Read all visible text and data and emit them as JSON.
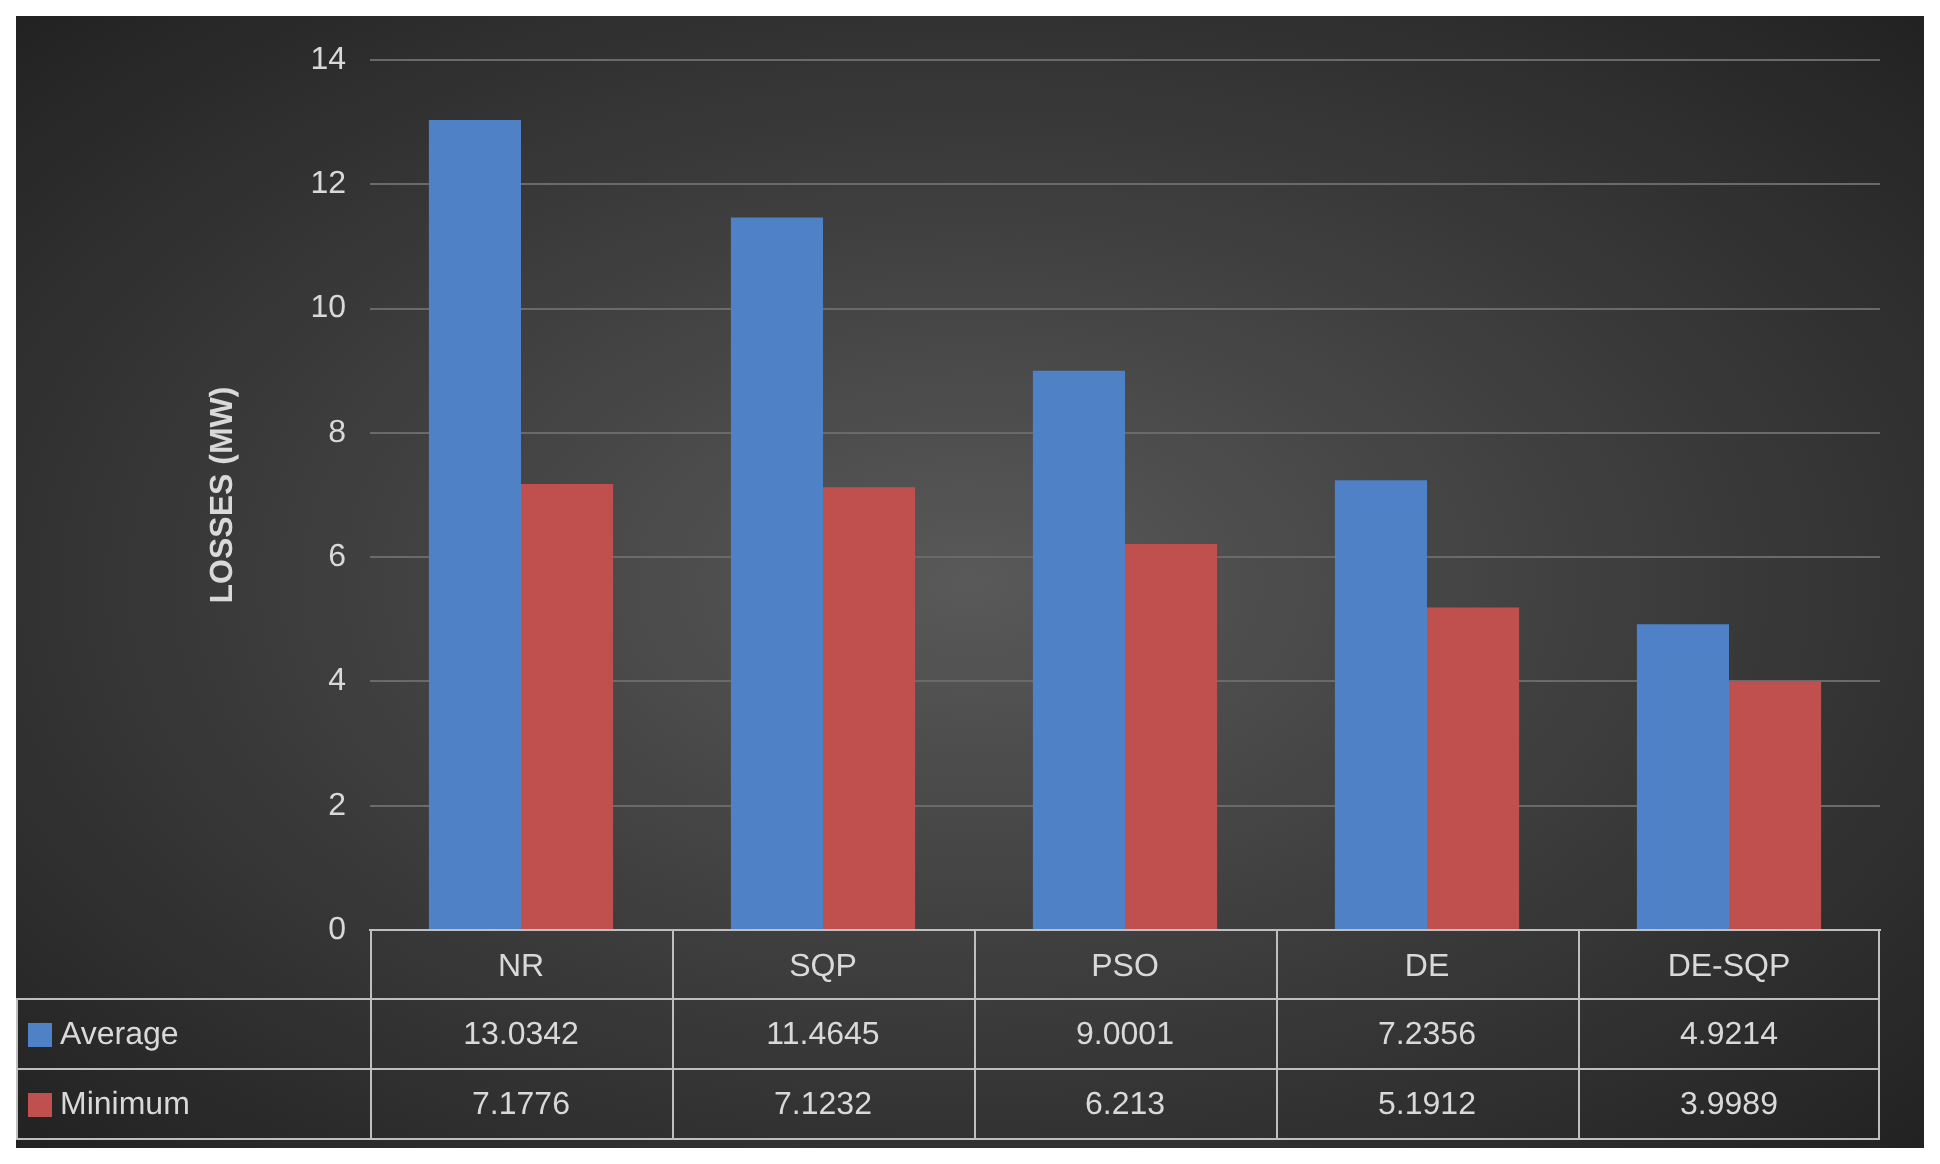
{
  "chart_data": {
    "type": "bar",
    "ylabel": "LOSSES (MW)",
    "categories": [
      "NR",
      "SQP",
      "PSO",
      "DE",
      "DE-SQP"
    ],
    "series": [
      {
        "name": "Average",
        "color": "#4f81c7",
        "values": [
          13.0342,
          11.4645,
          9.0001,
          7.2356,
          4.9214
        ]
      },
      {
        "name": "Minimum",
        "color": "#c0504d",
        "values": [
          7.1776,
          7.1232,
          6.213,
          5.1912,
          3.9989
        ]
      }
    ],
    "ylim": [
      0,
      14
    ],
    "yticks": [
      0,
      2,
      4,
      6,
      8,
      10,
      12,
      14
    ],
    "grid": "y",
    "legend": "bottom",
    "data_labels": true
  }
}
